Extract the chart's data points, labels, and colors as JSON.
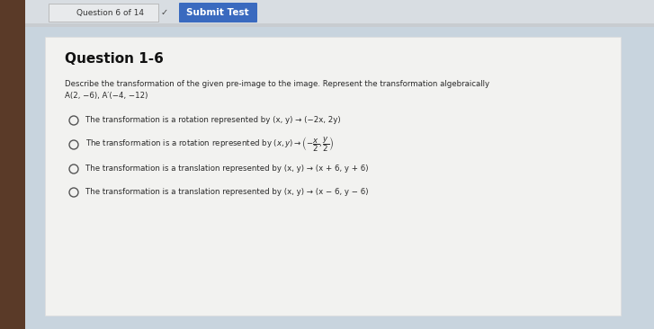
{
  "outer_bg": "#b8c8d8",
  "left_edge_color": "#5a3a28",
  "top_bar_bg": "#d8dde2",
  "submit_btn_color": "#3a6abf",
  "submit_btn_text": "Submit Test",
  "question_label": "Question 6 of 14",
  "content_bg": "#f0f0f0",
  "white_box_bg": "#f5f5f5",
  "question_title": "Question 1-6",
  "desc_line1": "Describe the transformation of the given pre-image to the image. Represent the transformation algebraically",
  "desc_line2": "A(2, −6), A′(−4, −12)",
  "option1": "The transformation is a rotation represented by (x, y) → (−2x, 2y)",
  "option2a": "The transformation is a rotation represented by (x, y) →",
  "option2b": "(−x/2, y/2)",
  "option3": "The transformation is a translation represented by (x, y) → (x + 6, y + 6)",
  "option4": "The transformation is a translation represented by (x, y) → (x − 6, y − 6)",
  "text_color": "#2a2a2a",
  "circle_color": "#555555",
  "figsize": [
    7.27,
    3.66
  ],
  "dpi": 100
}
